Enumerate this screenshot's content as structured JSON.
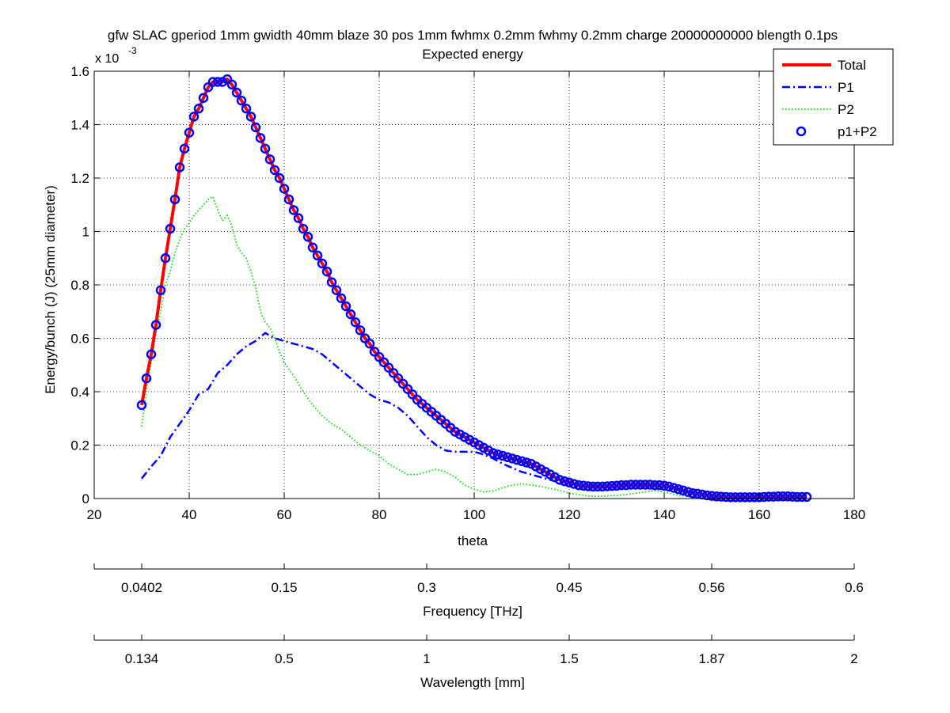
{
  "chart_data": {
    "type": "line",
    "title": "gfw SLAC gperiod 1mm gwidth 40mm blaze 30 pos 1mm fwhmx 0.2mm fwhmy 0.2mm charge 20000000000 blength 0.1ps",
    "subtitle": "Expected energy",
    "xlabel": "theta",
    "ylabel": "Energy/bunch (J) (25mm diameter)",
    "y_exponent_label": "x 10",
    "y_exponent_power": "-3",
    "xlim": [
      20,
      180
    ],
    "ylim": [
      0,
      1.6
    ],
    "x_ticks": [
      "20",
      "40",
      "60",
      "80",
      "100",
      "120",
      "140",
      "160",
      "180"
    ],
    "y_ticks": [
      "0",
      "0.2",
      "0.4",
      "0.6",
      "0.8",
      "1",
      "1.2",
      "1.4",
      "1.6"
    ],
    "grid": true,
    "legend_position": "top-right",
    "series": [
      {
        "name": "Total",
        "style": "solid",
        "color": "#ff0000",
        "x": [
          30,
          31,
          32,
          33,
          34,
          35,
          36,
          37,
          38,
          39,
          40,
          41,
          42,
          43,
          44,
          45,
          46,
          47,
          48,
          49,
          50,
          51,
          52,
          53,
          54,
          55,
          56,
          57,
          58,
          59,
          60,
          61,
          62,
          63,
          64,
          65,
          66,
          67,
          68,
          69,
          70,
          71,
          72,
          73,
          74,
          75,
          76,
          77,
          78,
          79,
          80,
          81,
          82,
          83,
          84,
          85,
          86,
          87,
          88,
          89,
          90,
          91,
          92,
          93,
          94,
          95,
          96,
          97,
          98,
          99,
          100,
          101,
          102,
          103,
          104,
          105,
          106,
          107,
          108,
          109,
          110,
          111,
          112,
          113,
          114,
          115,
          116,
          117,
          118,
          119,
          120,
          121,
          122,
          123,
          124,
          125,
          126,
          127,
          128,
          129,
          130,
          131,
          132,
          133,
          134,
          135,
          136,
          137,
          138,
          139,
          140,
          141,
          142,
          143,
          144,
          145,
          146,
          147,
          148,
          149,
          150,
          151,
          152,
          153,
          154,
          155,
          156,
          157,
          158,
          159,
          160,
          161,
          162,
          163,
          164,
          165,
          166,
          167,
          168,
          169,
          170
        ],
        "y": [
          0.35,
          0.45,
          0.54,
          0.65,
          0.78,
          0.9,
          1.01,
          1.12,
          1.24,
          1.31,
          1.37,
          1.43,
          1.46,
          1.5,
          1.54,
          1.56,
          1.56,
          1.56,
          1.57,
          1.55,
          1.52,
          1.49,
          1.46,
          1.43,
          1.39,
          1.35,
          1.31,
          1.27,
          1.23,
          1.2,
          1.16,
          1.12,
          1.08,
          1.05,
          1.01,
          0.98,
          0.94,
          0.91,
          0.88,
          0.85,
          0.81,
          0.78,
          0.75,
          0.72,
          0.69,
          0.66,
          0.63,
          0.6,
          0.58,
          0.55,
          0.53,
          0.51,
          0.49,
          0.47,
          0.45,
          0.43,
          0.41,
          0.39,
          0.37,
          0.355,
          0.34,
          0.325,
          0.31,
          0.295,
          0.28,
          0.265,
          0.25,
          0.24,
          0.23,
          0.22,
          0.21,
          0.2,
          0.19,
          0.18,
          0.17,
          0.165,
          0.16,
          0.155,
          0.15,
          0.145,
          0.14,
          0.135,
          0.13,
          0.12,
          0.11,
          0.1,
          0.09,
          0.08,
          0.07,
          0.065,
          0.06,
          0.055,
          0.05,
          0.048,
          0.046,
          0.045,
          0.045,
          0.045,
          0.046,
          0.047,
          0.048,
          0.05,
          0.05,
          0.052,
          0.052,
          0.052,
          0.052,
          0.052,
          0.05,
          0.05,
          0.048,
          0.045,
          0.04,
          0.035,
          0.03,
          0.025,
          0.02,
          0.018,
          0.015,
          0.012,
          0.01,
          0.008,
          0.007,
          0.006,
          0.005,
          0.005,
          0.005,
          0.005,
          0.005,
          0.005,
          0.005,
          0.006,
          0.007,
          0.007,
          0.008,
          0.008,
          0.008,
          0.007,
          0.006,
          0.006,
          0.006
        ]
      },
      {
        "name": "P1",
        "style": "dashdot",
        "color": "#0000ff",
        "x": [
          30,
          32,
          34,
          36,
          38,
          40,
          42,
          44,
          46,
          48,
          50,
          52,
          54,
          56,
          58,
          60,
          62,
          64,
          66,
          68,
          70,
          72,
          74,
          76,
          78,
          80,
          82,
          84,
          86,
          88,
          90,
          92,
          94,
          96,
          98,
          100,
          102,
          104,
          106,
          108,
          110,
          112,
          114,
          116,
          118,
          120
        ],
        "y": [
          0.075,
          0.12,
          0.16,
          0.23,
          0.28,
          0.33,
          0.39,
          0.41,
          0.47,
          0.5,
          0.54,
          0.57,
          0.59,
          0.62,
          0.6,
          0.59,
          0.58,
          0.57,
          0.56,
          0.54,
          0.51,
          0.48,
          0.45,
          0.42,
          0.39,
          0.37,
          0.36,
          0.34,
          0.31,
          0.27,
          0.23,
          0.2,
          0.18,
          0.175,
          0.175,
          0.175,
          0.165,
          0.15,
          0.13,
          0.115,
          0.1,
          0.09,
          0.08,
          0.07,
          0.06,
          0.055
        ]
      },
      {
        "name": "P2",
        "style": "dotted",
        "color": "#00dd00",
        "x": [
          30,
          31,
          32,
          33,
          34,
          35,
          36,
          37,
          38,
          39,
          40,
          41,
          42,
          43,
          44,
          45,
          46,
          47,
          48,
          49,
          50,
          51,
          52,
          53,
          54,
          55,
          56,
          57,
          58,
          59,
          60,
          62,
          64,
          66,
          68,
          70,
          72,
          74,
          76,
          78,
          80,
          82,
          84,
          86,
          88,
          90,
          92,
          94,
          96,
          98,
          100,
          102,
          104,
          106,
          108,
          110,
          112,
          114,
          116,
          118,
          120,
          122,
          124,
          126,
          128,
          130,
          132,
          134,
          136,
          138,
          140,
          142,
          144,
          146
        ],
        "y": [
          0.27,
          0.4,
          0.51,
          0.62,
          0.7,
          0.8,
          0.85,
          0.92,
          0.97,
          1.01,
          1.03,
          1.06,
          1.08,
          1.1,
          1.12,
          1.13,
          1.08,
          1.04,
          1.06,
          1.02,
          0.95,
          0.92,
          0.9,
          0.85,
          0.79,
          0.7,
          0.66,
          0.64,
          0.6,
          0.55,
          0.51,
          0.46,
          0.4,
          0.35,
          0.31,
          0.28,
          0.26,
          0.23,
          0.2,
          0.18,
          0.16,
          0.13,
          0.11,
          0.09,
          0.09,
          0.1,
          0.11,
          0.1,
          0.08,
          0.05,
          0.035,
          0.025,
          0.028,
          0.04,
          0.05,
          0.055,
          0.05,
          0.045,
          0.038,
          0.03,
          0.02,
          0.015,
          0.01,
          0.008,
          0.01,
          0.012,
          0.015,
          0.02,
          0.025,
          0.03,
          0.025,
          0.015,
          0.01,
          0.005
        ]
      },
      {
        "name": "p1+P2",
        "style": "circles",
        "color": "#0000ff",
        "source": "Total"
      }
    ],
    "secondary_axes": [
      {
        "label": "Frequency [THz]",
        "ticks": [
          {
            "theta": 30,
            "label": "0.0402"
          },
          {
            "theta": 60,
            "label": "0.15"
          },
          {
            "theta": 90,
            "label": "0.3"
          },
          {
            "theta": 120,
            "label": "0.45"
          },
          {
            "theta": 150,
            "label": "0.56"
          },
          {
            "theta": 180,
            "label": "0.6"
          }
        ]
      },
      {
        "label": "Wavelength [mm]",
        "ticks": [
          {
            "theta": 30,
            "label": "0.134"
          },
          {
            "theta": 60,
            "label": "0.5"
          },
          {
            "theta": 90,
            "label": "1"
          },
          {
            "theta": 120,
            "label": "1.5"
          },
          {
            "theta": 150,
            "label": "1.87"
          },
          {
            "theta": 180,
            "label": "2"
          }
        ]
      }
    ]
  }
}
